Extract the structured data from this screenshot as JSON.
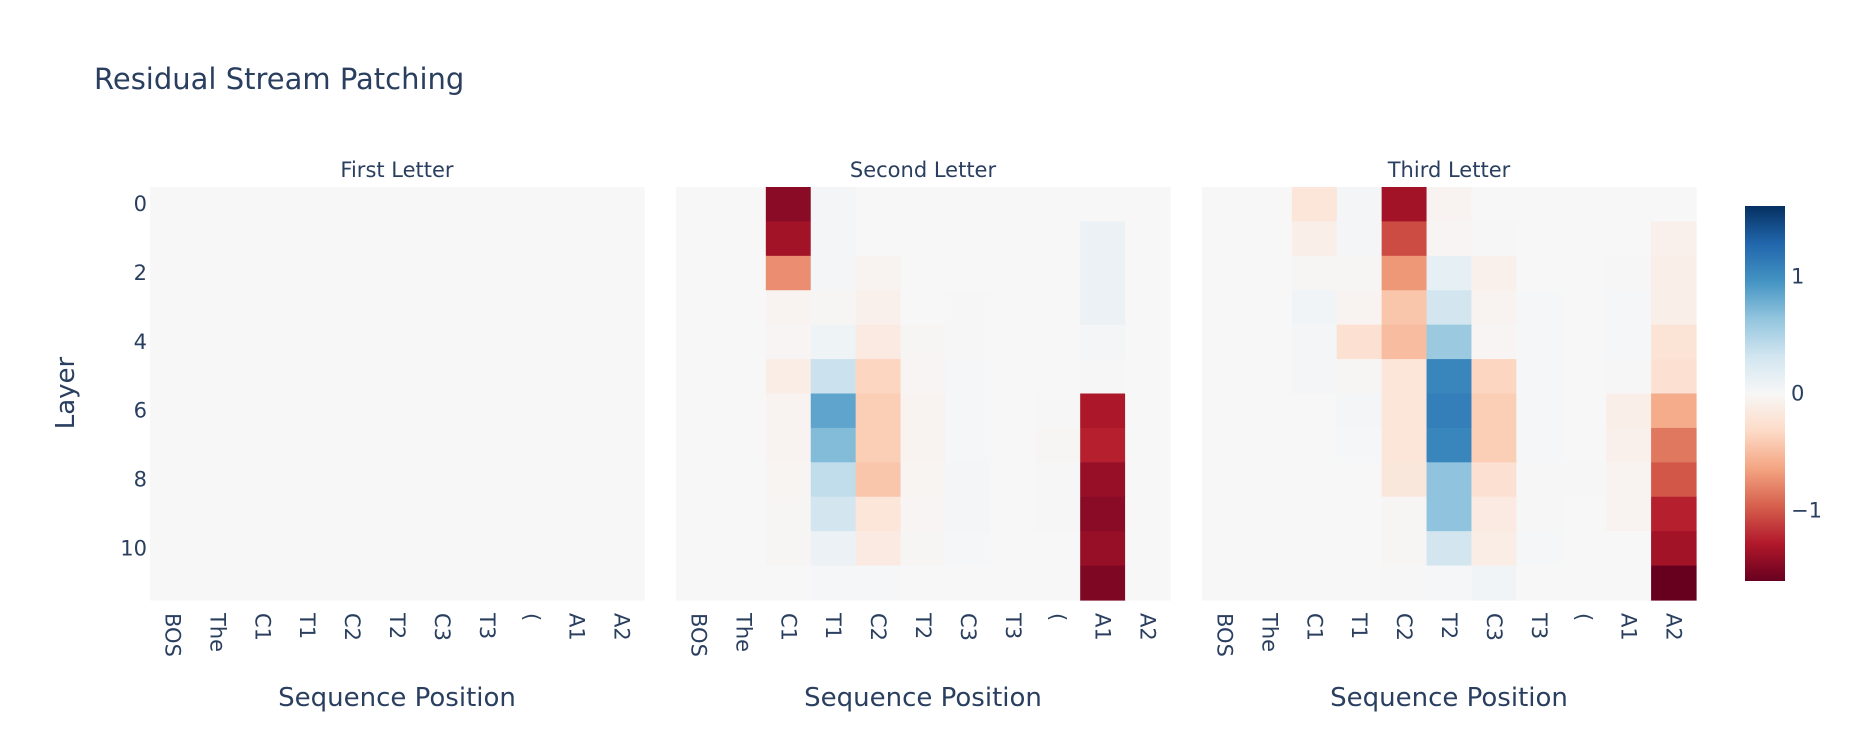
{
  "title": "Residual Stream Patching",
  "chart_data": {
    "type": "heatmap",
    "title": "Residual Stream Patching",
    "xlabel": "Sequence Position",
    "ylabel": "Layer",
    "x_categories": [
      "BOS",
      "The",
      "C1",
      "T1",
      "C2",
      "T2",
      "C3",
      "T3",
      "(",
      "A1",
      "A2"
    ],
    "y_categories": [
      0,
      1,
      2,
      3,
      4,
      5,
      6,
      7,
      8,
      9,
      10,
      11
    ],
    "y_tick_labels": [
      "0",
      "2",
      "4",
      "6",
      "8",
      "10"
    ],
    "colorscale": "RdBu",
    "zrange": [
      -1.6,
      1.6
    ],
    "colorbar_ticks": [
      "1",
      "0",
      "−1"
    ],
    "colorbar_tick_values": [
      1,
      0,
      -1
    ],
    "panels": [
      {
        "name": "First Letter",
        "z": [
          [
            0,
            0,
            0,
            0,
            0,
            0,
            0,
            0,
            0,
            0,
            0
          ],
          [
            0,
            0,
            0,
            0,
            0,
            0,
            0,
            0,
            0,
            0,
            0
          ],
          [
            0,
            0,
            0,
            0,
            0,
            0,
            0,
            0,
            0,
            0,
            0
          ],
          [
            0,
            0,
            0,
            0,
            0,
            0,
            0,
            0,
            0,
            0,
            0
          ],
          [
            0,
            0,
            0,
            0,
            0,
            0,
            0,
            0,
            0,
            0,
            0
          ],
          [
            0,
            0,
            0,
            0,
            0,
            0,
            0,
            0,
            0,
            0,
            0
          ],
          [
            0,
            0,
            0,
            0,
            0,
            0,
            0,
            0,
            0,
            0,
            0
          ],
          [
            0,
            0,
            0,
            0,
            0,
            0,
            0,
            0,
            0,
            0,
            0
          ],
          [
            0,
            0,
            0,
            0,
            0,
            0,
            0,
            0,
            0,
            0,
            0
          ],
          [
            0,
            0,
            0,
            0,
            0,
            0,
            0,
            0,
            0,
            0,
            0
          ],
          [
            0,
            0,
            0,
            0,
            0,
            0,
            0,
            0,
            0,
            0,
            0
          ],
          [
            0,
            0,
            0,
            0,
            0,
            0,
            0,
            0,
            0,
            0,
            0
          ]
        ]
      },
      {
        "name": "Second Letter",
        "z": [
          [
            0,
            0,
            -1.45,
            0.03,
            0,
            0,
            0,
            0,
            0,
            0,
            0
          ],
          [
            0,
            0,
            -1.35,
            0.03,
            0,
            0,
            0,
            0,
            0,
            0.1,
            0
          ],
          [
            0,
            0,
            -0.75,
            0.03,
            -0.05,
            0,
            0,
            0,
            0,
            0.1,
            0
          ],
          [
            0,
            0,
            -0.05,
            -0.02,
            -0.08,
            0,
            0.01,
            0,
            0,
            0.1,
            0
          ],
          [
            0,
            0,
            -0.03,
            0.08,
            -0.15,
            -0.02,
            0.01,
            0,
            0,
            0.03,
            0
          ],
          [
            0,
            0,
            -0.12,
            0.35,
            -0.35,
            -0.03,
            0.02,
            0,
            0,
            0.01,
            0
          ],
          [
            0,
            0,
            -0.05,
            0.85,
            -0.4,
            -0.05,
            0.02,
            0,
            -0.01,
            -1.3,
            0
          ],
          [
            0,
            0,
            -0.05,
            0.7,
            -0.4,
            -0.05,
            0.02,
            0,
            -0.02,
            -1.25,
            0
          ],
          [
            0,
            0,
            -0.04,
            0.4,
            -0.45,
            -0.04,
            0.03,
            0,
            -0.01,
            -1.4,
            0
          ],
          [
            0,
            0,
            -0.02,
            0.3,
            -0.2,
            -0.03,
            0.03,
            0,
            -0.01,
            -1.45,
            0
          ],
          [
            0,
            0,
            -0.02,
            0.1,
            -0.15,
            -0.02,
            0.02,
            0,
            0,
            -1.4,
            0
          ],
          [
            0,
            0,
            0,
            0.02,
            0.02,
            0,
            0,
            0,
            0,
            -1.5,
            0
          ]
        ]
      },
      {
        "name": "Third Letter",
        "z": [
          [
            0,
            0,
            -0.2,
            0.03,
            -1.35,
            -0.05,
            0,
            0,
            0,
            0,
            0
          ],
          [
            0,
            0,
            -0.1,
            0.03,
            -1.05,
            -0.03,
            0.01,
            0,
            0,
            0,
            -0.08
          ],
          [
            0,
            0,
            -0.02,
            -0.02,
            -0.7,
            0.15,
            -0.08,
            0,
            0,
            0.01,
            -0.1
          ],
          [
            0,
            0,
            0.05,
            -0.05,
            -0.45,
            0.3,
            -0.05,
            0.02,
            0,
            0.02,
            -0.1
          ],
          [
            0,
            0,
            0.03,
            -0.25,
            -0.5,
            0.6,
            -0.03,
            0.02,
            0,
            0.02,
            -0.22
          ],
          [
            0,
            0,
            0.03,
            -0.02,
            -0.2,
            1.05,
            -0.35,
            0.02,
            0,
            0.01,
            -0.25
          ],
          [
            0,
            0,
            0,
            0.03,
            -0.2,
            1.1,
            -0.4,
            0.02,
            0,
            -0.1,
            -0.6
          ],
          [
            0,
            0,
            0,
            0.02,
            -0.2,
            1.05,
            -0.4,
            0.02,
            0,
            -0.08,
            -0.85
          ],
          [
            0,
            0,
            0,
            0,
            -0.18,
            0.65,
            -0.25,
            0.01,
            0.01,
            -0.05,
            -1.0
          ],
          [
            0,
            0,
            0,
            0,
            -0.02,
            0.65,
            -0.15,
            0.01,
            0,
            -0.05,
            -1.25
          ],
          [
            0,
            0,
            0,
            0,
            -0.02,
            0.3,
            -0.12,
            0.02,
            0,
            0,
            -1.35
          ],
          [
            0,
            0,
            0,
            0,
            0.01,
            0.02,
            0.05,
            0,
            0,
            0,
            -1.6
          ]
        ]
      }
    ]
  }
}
